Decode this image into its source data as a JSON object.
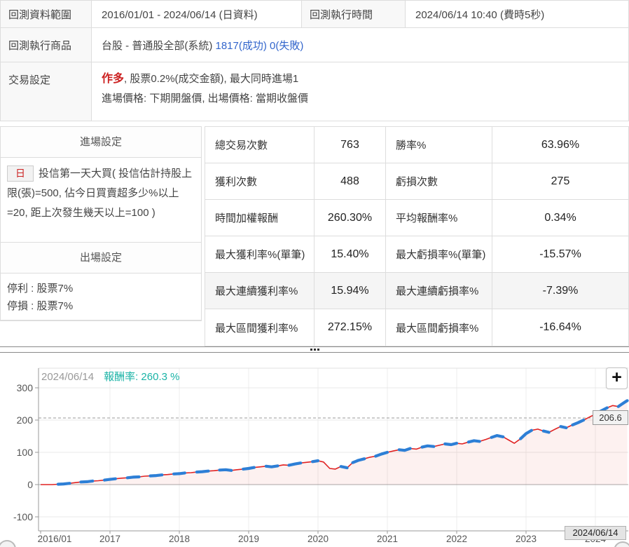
{
  "colors": {
    "accent_red": "#cc2222",
    "accent_blue": "#3366cc",
    "return_teal": "#1ab3a6",
    "line_red": "#e02222",
    "trade_blue": "#2d7fd6"
  },
  "top_table": {
    "range_label": "回測資料範圍",
    "range_value": "2016/01/01 - 2024/06/14 (日資料)",
    "time_label": "回測執行時間",
    "time_value": "2024/06/14 10:40 (費時5秒)",
    "product_label": "回測執行商品",
    "product_name": "台股 - 普通股全部(系統)",
    "product_success": "1817(成功)",
    "product_fail": "0(失敗)",
    "trade_label": "交易設定",
    "trade_direction": "作多",
    "trade_line1_rest": ", 股票0.2%(成交金額), 最大同時進場1",
    "trade_line2": "進場價格: 下期開盤價, 出場價格: 當期收盤價"
  },
  "entry_panel": {
    "entry_header": "進場設定",
    "freq_badge": "日",
    "entry_condition": "投信第一天大買( 投信估計持股上限(張)=500, 佔今日買賣超多少%以上=20, 距上次發生幾天以上=100 )",
    "exit_header": "出場設定",
    "exit_line1": "停利 : 股票7%",
    "exit_line2": "停損 : 股票7%"
  },
  "stats": {
    "rows": [
      {
        "l1": "總交易次數",
        "v1": "763",
        "l2": "勝率%",
        "v2": "63.96%"
      },
      {
        "l1": "獲利次數",
        "v1": "488",
        "l2": "虧損次數",
        "v2": "275"
      },
      {
        "l1": "時間加權報酬",
        "v1": "260.30%",
        "l2": "平均報酬率%",
        "v2": "0.34%"
      },
      {
        "l1": "最大獲利率%(單筆)",
        "v1": "15.40%",
        "l2": "最大虧損率%(單筆)",
        "v2": "-15.57%"
      },
      {
        "l1": "最大連續獲利率%",
        "v1": "15.94%",
        "l2": "最大連續虧損率%",
        "v2": "-7.39%"
      },
      {
        "l1": "最大區間獲利率%",
        "v1": "272.15%",
        "l2": "最大區間虧損率%",
        "v2": "-16.64%"
      }
    ]
  },
  "zoom_button": "+",
  "chart_data": {
    "type": "line",
    "series_name": "報酬率%",
    "tooltip_date": "2024/06/14",
    "tooltip_return": "報酬率: 260.3 %",
    "ylim": [
      -100,
      300
    ],
    "y_ticks": [
      300,
      200,
      100,
      0,
      -100
    ],
    "x_ticks": [
      "2016/01",
      "2017",
      "2018",
      "2019",
      "2020",
      "2021",
      "2022",
      "2023",
      "2024"
    ],
    "x_end_label": "2024/06/14",
    "reference_line": 206.6,
    "reference_label": "206.6",
    "grid": true,
    "line_color": "#e02222",
    "trade_color": "#2d7fd6",
    "fill_color": "rgba(230,80,70,0.08)",
    "x": [
      2016.0,
      2016.08,
      2016.17,
      2016.25,
      2016.33,
      2016.42,
      2016.5,
      2016.58,
      2016.67,
      2016.75,
      2016.83,
      2016.92,
      2017.0,
      2017.08,
      2017.17,
      2017.25,
      2017.33,
      2017.42,
      2017.5,
      2017.58,
      2017.67,
      2017.75,
      2017.83,
      2017.92,
      2018.0,
      2018.08,
      2018.17,
      2018.25,
      2018.33,
      2018.42,
      2018.5,
      2018.58,
      2018.67,
      2018.75,
      2018.83,
      2018.92,
      2019.0,
      2019.08,
      2019.17,
      2019.25,
      2019.33,
      2019.42,
      2019.5,
      2019.58,
      2019.67,
      2019.75,
      2019.83,
      2019.92,
      2020.0,
      2020.08,
      2020.17,
      2020.25,
      2020.33,
      2020.42,
      2020.5,
      2020.58,
      2020.67,
      2020.75,
      2020.83,
      2020.92,
      2021.0,
      2021.08,
      2021.17,
      2021.25,
      2021.33,
      2021.42,
      2021.5,
      2021.58,
      2021.67,
      2021.75,
      2021.83,
      2021.92,
      2022.0,
      2022.08,
      2022.17,
      2022.25,
      2022.33,
      2022.42,
      2022.5,
      2022.58,
      2022.67,
      2022.75,
      2022.83,
      2022.92,
      2023.0,
      2023.08,
      2023.17,
      2023.25,
      2023.33,
      2023.42,
      2023.5,
      2023.58,
      2023.67,
      2023.75,
      2023.83,
      2023.92,
      2024.0,
      2024.08,
      2024.17,
      2024.25,
      2024.33,
      2024.42,
      2024.46
    ],
    "y": [
      0,
      0,
      0,
      1,
      2,
      4,
      6,
      8,
      9,
      11,
      12,
      14,
      16,
      18,
      20,
      21,
      23,
      24,
      26,
      27,
      28,
      30,
      31,
      33,
      34,
      36,
      37,
      39,
      40,
      42,
      43,
      45,
      46,
      44,
      46,
      48,
      50,
      53,
      55,
      57,
      55,
      58,
      61,
      60,
      64,
      67,
      69,
      71,
      74,
      70,
      50,
      48,
      56,
      52,
      68,
      75,
      80,
      85,
      88,
      95,
      100,
      104,
      108,
      106,
      112,
      110,
      116,
      120,
      118,
      122,
      126,
      124,
      128,
      126,
      132,
      136,
      134,
      140,
      146,
      152,
      148,
      138,
      128,
      142,
      158,
      168,
      172,
      166,
      162,
      172,
      180,
      176,
      185,
      192,
      200,
      210,
      218,
      228,
      238,
      245,
      242,
      255,
      260.3
    ],
    "trade_segments": [
      [
        3,
        5
      ],
      [
        7,
        9
      ],
      [
        11,
        13
      ],
      [
        15,
        17
      ],
      [
        19,
        21
      ],
      [
        23,
        25
      ],
      [
        27,
        29
      ],
      [
        31,
        33
      ],
      [
        35,
        37
      ],
      [
        39,
        41
      ],
      [
        43,
        45
      ],
      [
        47,
        48
      ],
      [
        52,
        53
      ],
      [
        54,
        56
      ],
      [
        58,
        60
      ],
      [
        62,
        64
      ],
      [
        66,
        68
      ],
      [
        70,
        72
      ],
      [
        74,
        76
      ],
      [
        78,
        80
      ],
      [
        83,
        85
      ],
      [
        87,
        88
      ],
      [
        90,
        91
      ],
      [
        92,
        94
      ],
      [
        96,
        98
      ],
      [
        100,
        102
      ]
    ]
  }
}
